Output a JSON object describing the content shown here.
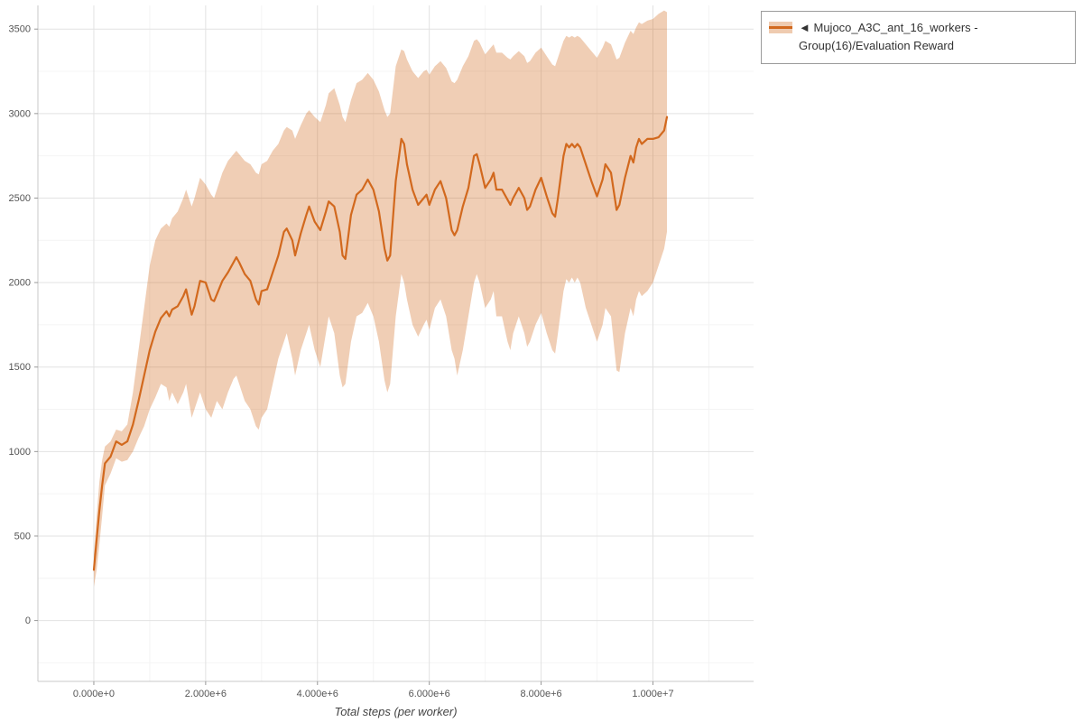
{
  "legend": {
    "prefix": "◄",
    "label": "Mujoco_A3C_ant_16_workers - Group(16)/Evaluation Reward"
  },
  "colors": {
    "line": "#d2691e",
    "band": "#d2691e",
    "band_opacity": 0.33,
    "grid_major": "#e2e2e2",
    "grid_minor": "#f4f4f4",
    "axis": "#c8c8c8",
    "tick_text": "#555555"
  },
  "chart_data": {
    "type": "line",
    "title": "",
    "xlabel": "Total steps (per worker)",
    "ylabel": "",
    "legend_position": "outside-top-right",
    "grid": true,
    "xlim": [
      -1000000,
      11800000
    ],
    "ylim": [
      -360,
      3640
    ],
    "x_ticks": [
      {
        "value": 0,
        "label": "0.000e+0"
      },
      {
        "value": 2000000,
        "label": "2.000e+6"
      },
      {
        "value": 4000000,
        "label": "4.000e+6"
      },
      {
        "value": 6000000,
        "label": "6.000e+6"
      },
      {
        "value": 8000000,
        "label": "8.000e+6"
      },
      {
        "value": 10000000,
        "label": "1.000e+7"
      }
    ],
    "y_ticks": [
      0,
      500,
      1000,
      1500,
      2000,
      2500,
      3000,
      3500
    ],
    "x": [
      0,
      50000,
      100000,
      150000,
      200000,
      300000,
      400000,
      500000,
      600000,
      700000,
      800000,
      900000,
      1000000,
      1100000,
      1200000,
      1300000,
      1350000,
      1400000,
      1500000,
      1600000,
      1650000,
      1750000,
      1800000,
      1900000,
      2000000,
      2100000,
      2150000,
      2200000,
      2300000,
      2400000,
      2500000,
      2550000,
      2600000,
      2700000,
      2800000,
      2900000,
      2950000,
      3000000,
      3100000,
      3200000,
      3300000,
      3400000,
      3450000,
      3550000,
      3600000,
      3700000,
      3800000,
      3850000,
      3950000,
      4050000,
      4150000,
      4200000,
      4300000,
      4400000,
      4450000,
      4500000,
      4600000,
      4700000,
      4800000,
      4900000,
      5000000,
      5100000,
      5200000,
      5250000,
      5300000,
      5400000,
      5500000,
      5550000,
      5600000,
      5700000,
      5800000,
      5900000,
      5950000,
      6000000,
      6100000,
      6200000,
      6300000,
      6400000,
      6450000,
      6500000,
      6600000,
      6700000,
      6800000,
      6850000,
      6900000,
      7000000,
      7100000,
      7150000,
      7200000,
      7300000,
      7400000,
      7450000,
      7500000,
      7600000,
      7700000,
      7750000,
      7800000,
      7900000,
      8000000,
      8100000,
      8200000,
      8250000,
      8300000,
      8400000,
      8450000,
      8500000,
      8550000,
      8600000,
      8650000,
      8700000,
      8800000,
      8900000,
      9000000,
      9100000,
      9150000,
      9250000,
      9350000,
      9400000,
      9500000,
      9600000,
      9650000,
      9700000,
      9750000,
      9800000,
      9900000,
      10000000,
      10100000,
      10200000,
      10250000
    ],
    "series": [
      {
        "name": "Mujoco_A3C_ant_16_workers - Group(16)/Evaluation Reward (mean)",
        "role": "mean",
        "values": [
          300,
          480,
          650,
          800,
          930,
          970,
          1060,
          1040,
          1060,
          1160,
          1300,
          1450,
          1600,
          1710,
          1790,
          1830,
          1800,
          1840,
          1860,
          1920,
          1960,
          1810,
          1860,
          2010,
          2000,
          1900,
          1890,
          1930,
          2010,
          2060,
          2120,
          2150,
          2120,
          2050,
          2010,
          1900,
          1870,
          1950,
          1960,
          2060,
          2160,
          2300,
          2320,
          2250,
          2160,
          2290,
          2400,
          2450,
          2360,
          2310,
          2420,
          2480,
          2450,
          2300,
          2160,
          2140,
          2400,
          2520,
          2550,
          2610,
          2550,
          2420,
          2200,
          2130,
          2160,
          2600,
          2850,
          2820,
          2700,
          2550,
          2460,
          2500,
          2520,
          2460,
          2550,
          2600,
          2500,
          2310,
          2280,
          2310,
          2450,
          2560,
          2750,
          2760,
          2700,
          2560,
          2610,
          2650,
          2550,
          2550,
          2490,
          2460,
          2500,
          2560,
          2500,
          2430,
          2450,
          2550,
          2620,
          2510,
          2410,
          2390,
          2500,
          2750,
          2820,
          2800,
          2820,
          2800,
          2820,
          2800,
          2700,
          2600,
          2510,
          2610,
          2700,
          2650,
          2430,
          2460,
          2620,
          2750,
          2710,
          2800,
          2850,
          2820,
          2850,
          2850,
          2860,
          2900,
          2980
        ]
      },
      {
        "name": "band lower (mean - std)",
        "role": "band_lower",
        "values": [
          200,
          300,
          450,
          620,
          800,
          870,
          960,
          940,
          950,
          1000,
          1080,
          1150,
          1250,
          1320,
          1400,
          1380,
          1300,
          1350,
          1280,
          1350,
          1400,
          1200,
          1250,
          1350,
          1250,
          1200,
          1250,
          1300,
          1250,
          1350,
          1430,
          1450,
          1400,
          1300,
          1250,
          1150,
          1130,
          1200,
          1250,
          1400,
          1550,
          1650,
          1700,
          1550,
          1450,
          1600,
          1700,
          1750,
          1600,
          1500,
          1700,
          1800,
          1700,
          1450,
          1380,
          1400,
          1650,
          1800,
          1820,
          1880,
          1800,
          1650,
          1420,
          1350,
          1400,
          1800,
          2050,
          2000,
          1900,
          1750,
          1680,
          1750,
          1780,
          1720,
          1850,
          1900,
          1800,
          1600,
          1550,
          1450,
          1600,
          1800,
          2000,
          2050,
          2000,
          1850,
          1900,
          1950,
          1800,
          1800,
          1650,
          1600,
          1700,
          1800,
          1700,
          1620,
          1650,
          1750,
          1820,
          1700,
          1600,
          1580,
          1700,
          1950,
          2020,
          2000,
          2030,
          2000,
          2030,
          2000,
          1850,
          1750,
          1650,
          1750,
          1850,
          1800,
          1480,
          1470,
          1700,
          1850,
          1800,
          1900,
          1950,
          1920,
          1950,
          2000,
          2100,
          2200,
          2300
        ]
      },
      {
        "name": "band upper (mean + std)",
        "role": "band_upper",
        "values": [
          390,
          620,
          820,
          950,
          1030,
          1060,
          1130,
          1120,
          1160,
          1350,
          1600,
          1850,
          2100,
          2250,
          2320,
          2350,
          2330,
          2380,
          2420,
          2500,
          2550,
          2450,
          2500,
          2620,
          2580,
          2520,
          2500,
          2550,
          2650,
          2720,
          2760,
          2780,
          2760,
          2720,
          2700,
          2650,
          2640,
          2700,
          2720,
          2780,
          2820,
          2900,
          2920,
          2900,
          2850,
          2930,
          3000,
          3020,
          2980,
          2950,
          3050,
          3120,
          3150,
          3050,
          2980,
          2950,
          3080,
          3180,
          3200,
          3240,
          3200,
          3130,
          3020,
          2980,
          3000,
          3280,
          3380,
          3370,
          3320,
          3250,
          3210,
          3250,
          3260,
          3230,
          3280,
          3310,
          3270,
          3190,
          3180,
          3200,
          3280,
          3340,
          3430,
          3440,
          3420,
          3350,
          3390,
          3410,
          3360,
          3360,
          3330,
          3320,
          3340,
          3370,
          3340,
          3300,
          3310,
          3360,
          3390,
          3340,
          3290,
          3280,
          3330,
          3430,
          3460,
          3450,
          3460,
          3450,
          3460,
          3450,
          3410,
          3370,
          3330,
          3390,
          3430,
          3410,
          3320,
          3330,
          3420,
          3490,
          3470,
          3510,
          3540,
          3530,
          3550,
          3560,
          3590,
          3610,
          3600
        ]
      }
    ]
  }
}
